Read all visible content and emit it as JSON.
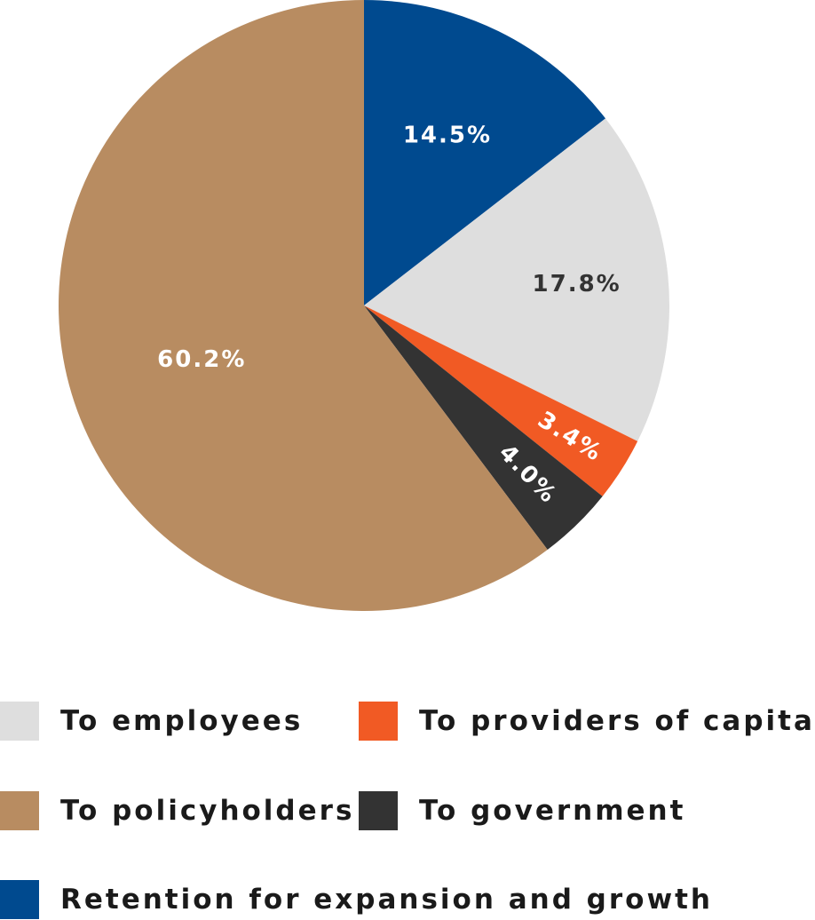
{
  "chart_data": {
    "type": "pie",
    "title": "",
    "slices": [
      {
        "key": "retention",
        "label": "Retention for expansion and growth",
        "value": 14.5,
        "display": "14.5%",
        "color": "#004a8f",
        "text_color": "#ffffff"
      },
      {
        "key": "employees",
        "label": "To employees",
        "value": 17.8,
        "display": "17.8%",
        "color": "#dedede",
        "text_color": "#333333"
      },
      {
        "key": "capital",
        "label": "To providers of capital",
        "value": 3.4,
        "display": "3.4%",
        "color": "#f15a24",
        "text_color": "#ffffff"
      },
      {
        "key": "government",
        "label": "To government",
        "value": 4.0,
        "display": "4.0%",
        "color": "#333333",
        "text_color": "#ffffff"
      },
      {
        "key": "policyholders",
        "label": "To policyholders",
        "value": 60.2,
        "display": "60.2%",
        "color": "#b88c61",
        "text_color": "#ffffff"
      }
    ],
    "start_angle": "12 o'clock",
    "direction": "clockwise",
    "legend_placement": "bottom"
  },
  "legend": {
    "employees": {
      "label": "To employees",
      "color": "#dedede"
    },
    "capital": {
      "label": "To providers of capital",
      "color": "#f15a24"
    },
    "policyholders": {
      "label": "To policyholders",
      "color": "#b88c61"
    },
    "government": {
      "label": "To government",
      "color": "#333333"
    },
    "retention": {
      "label": "Retention for expansion and growth",
      "color": "#004a8f"
    }
  }
}
